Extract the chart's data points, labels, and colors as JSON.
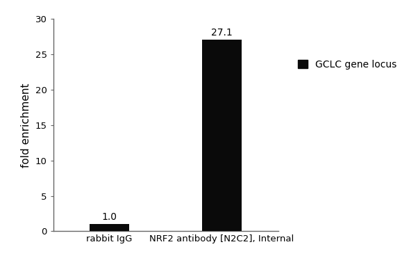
{
  "categories": [
    "rabbit IgG",
    "NRF2 antibody [N2C2], Internal"
  ],
  "values": [
    1.0,
    27.1
  ],
  "bar_color": "#0a0a0a",
  "bar_width": 0.35,
  "ylim": [
    0,
    30
  ],
  "yticks": [
    0,
    5,
    10,
    15,
    20,
    25,
    30
  ],
  "ylabel": "fold enrichment",
  "ylabel_fontsize": 11,
  "tick_label_fontsize": 9.5,
  "annotation_fontsize": 10,
  "legend_label": "GCLC gene locus",
  "legend_fontsize": 10,
  "background_color": "#ffffff",
  "annotations": [
    "1.0",
    "27.1"
  ],
  "figsize": [
    5.89,
    3.91
  ],
  "dpi": 100
}
